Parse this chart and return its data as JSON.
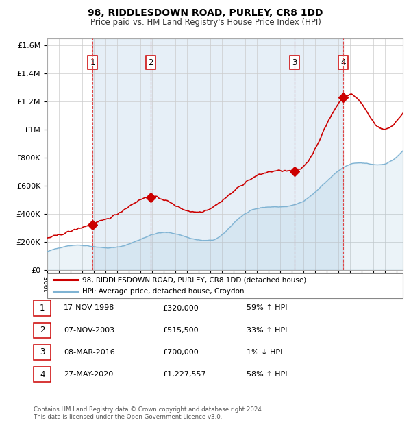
{
  "title": "98, RIDDLESDOWN ROAD, PURLEY, CR8 1DD",
  "subtitle": "Price paid vs. HM Land Registry's House Price Index (HPI)",
  "red_label": "98, RIDDLESDOWN ROAD, PURLEY, CR8 1DD (detached house)",
  "blue_label": "HPI: Average price, detached house, Croydon",
  "footer": "Contains HM Land Registry data © Crown copyright and database right 2024.\nThis data is licensed under the Open Government Licence v3.0.",
  "transactions": [
    {
      "num": 1,
      "date": "17-NOV-1998",
      "price": 320000,
      "pct": "59%",
      "dir": "↑",
      "year": 1998.88
    },
    {
      "num": 2,
      "date": "07-NOV-2003",
      "price": 515500,
      "pct": "33%",
      "dir": "↑",
      "year": 2003.85
    },
    {
      "num": 3,
      "date": "08-MAR-2016",
      "price": 700000,
      "pct": "1%",
      "dir": "↓",
      "year": 2016.19
    },
    {
      "num": 4,
      "date": "27-MAY-2020",
      "price": 1227557,
      "pct": "58%",
      "dir": "↑",
      "year": 2020.41
    }
  ],
  "ylim": [
    0,
    1650000
  ],
  "xlim_start": 1995.0,
  "xlim_end": 2025.5,
  "background_color": "#ffffff",
  "plot_bg_color": "#ffffff",
  "shade_color": "#dce9f5",
  "grid_color": "#cccccc",
  "red_color": "#cc0000",
  "blue_color": "#7fb3d3",
  "dashed_red": "#dd4444"
}
